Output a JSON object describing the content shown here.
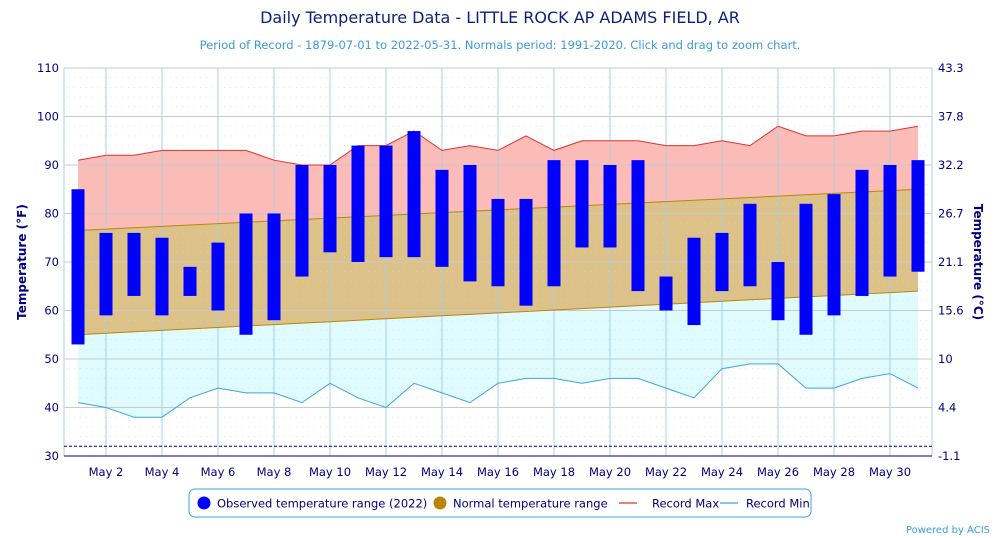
{
  "chart_data": {
    "type": "bar",
    "title": "Daily Temperature Data - LITTLE ROCK AP ADAMS FIELD, AR",
    "subtitle": "Period of Record - 1879-07-01 to 2022-05-31. Normals period: 1991-2020. Click and drag to zoom chart.",
    "ylabel": "Temperature (°F)",
    "ylabel_right": "Temperature (°C)",
    "ylim": [
      30,
      110
    ],
    "y_ticks": [
      30,
      40,
      50,
      60,
      70,
      80,
      90,
      100,
      110
    ],
    "y_ticks_right": [
      "-1.1",
      "4.4",
      "10",
      "15.6",
      "21.1",
      "26.7",
      "32.2",
      "37.8",
      "43.3"
    ],
    "x_tick_labels": [
      "May 2",
      "May 4",
      "May 6",
      "May 8",
      "May 10",
      "May 12",
      "May 14",
      "May 16",
      "May 18",
      "May 20",
      "May 22",
      "May 24",
      "May 26",
      "May 28",
      "May 30"
    ],
    "x_tick_days": [
      2,
      4,
      6,
      8,
      10,
      12,
      14,
      16,
      18,
      20,
      22,
      24,
      26,
      28,
      30
    ],
    "days": [
      1,
      2,
      3,
      4,
      5,
      6,
      7,
      8,
      9,
      10,
      11,
      12,
      13,
      14,
      15,
      16,
      17,
      18,
      19,
      20,
      21,
      22,
      23,
      24,
      25,
      26,
      27,
      28,
      29,
      30,
      31
    ],
    "dashed_line_value": 32,
    "series": [
      {
        "name": "Observed temperature range (2022)",
        "color": "#0000ff",
        "high": [
          85,
          76,
          76,
          75,
          69,
          74,
          80,
          80,
          90,
          90,
          94,
          94,
          97,
          89,
          90,
          83,
          83,
          91,
          91,
          90,
          91,
          67,
          75,
          76,
          82,
          70,
          82,
          84,
          89,
          90,
          91
        ],
        "low": [
          53,
          59,
          63,
          59,
          63,
          60,
          55,
          58,
          67,
          72,
          70,
          71,
          71,
          69,
          66,
          65,
          61,
          65,
          73,
          73,
          64,
          60,
          57,
          64,
          65,
          58,
          55,
          59,
          63,
          67,
          68
        ]
      },
      {
        "name": "Normal temperature range",
        "color": "#b8860b",
        "fill": "#dcc189",
        "high_start": 76.5,
        "high_end": 85,
        "low_start": 55,
        "low_end": 64
      },
      {
        "name": "Record Max",
        "color": "#e03030",
        "fill": "#fbbcb8",
        "values": [
          91,
          92,
          92,
          93,
          93,
          93,
          93,
          91,
          90,
          90,
          94,
          94,
          97,
          93,
          94,
          93,
          96,
          93,
          95,
          95,
          95,
          94,
          94,
          95,
          94,
          98,
          96,
          96,
          97,
          97,
          98
        ]
      },
      {
        "name": "Record Min",
        "color": "#3aa6dc",
        "fill": "#e0fbfd",
        "values": [
          41,
          40,
          38,
          38,
          42,
          44,
          43,
          43,
          41,
          45,
          42,
          40,
          45,
          43,
          41,
          45,
          46,
          46,
          45,
          46,
          46,
          44,
          42,
          48,
          49,
          49,
          44,
          44,
          46,
          47,
          44
        ]
      }
    ],
    "grid": true,
    "legend_placement": "bottom-center"
  },
  "credit": "Powered by ACIS"
}
